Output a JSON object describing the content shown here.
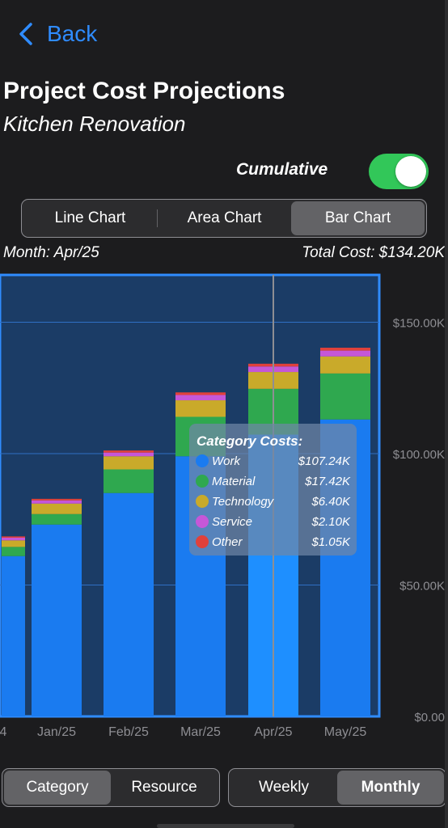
{
  "nav": {
    "back_label": "Back"
  },
  "header": {
    "title": "Project Cost Projections",
    "subtitle": "Kitchen Renovation"
  },
  "cumulative": {
    "label": "Cumulative",
    "on": true
  },
  "chart_tabs": {
    "options": [
      "Line Chart",
      "Area Chart",
      "Bar Chart"
    ],
    "selected": "Bar Chart"
  },
  "summary": {
    "month": "Month: Apr/25",
    "total": "Total Cost: $134.20K"
  },
  "group_tabs": {
    "options": [
      "Category",
      "Resource"
    ],
    "selected": "Category"
  },
  "period_tabs": {
    "options": [
      "Weekly",
      "Monthly"
    ],
    "selected": "Monthly"
  },
  "colors": {
    "work": "#1a7bf0",
    "material": "#2fa84f",
    "technology": "#c9aa2a",
    "service": "#c557d8",
    "other": "#e0413b",
    "accent": "#2f8cff",
    "toggle_on": "#32c759"
  },
  "chart_data": {
    "type": "bar",
    "stacked": true,
    "categories": [
      "4",
      "Jan/25",
      "Feb/25",
      "Mar/25",
      "Apr/25",
      "May/25"
    ],
    "series": [
      {
        "name": "Work",
        "values": [
          61.0,
          73.0,
          85.0,
          99.0,
          107.24,
          113.0
        ]
      },
      {
        "name": "Material",
        "values": [
          3.5,
          4.0,
          9.0,
          15.0,
          17.42,
          17.5
        ]
      },
      {
        "name": "Technology",
        "values": [
          2.5,
          4.0,
          5.0,
          6.3,
          6.4,
          6.5
        ]
      },
      {
        "name": "Service",
        "values": [
          1.0,
          1.2,
          1.4,
          2.0,
          2.1,
          2.2
        ]
      },
      {
        "name": "Other",
        "values": [
          0.5,
          0.6,
          0.8,
          1.0,
          1.05,
          1.1
        ]
      }
    ],
    "ylim": [
      0,
      168
    ],
    "y_ticks": [
      "$0.00",
      "$50.00K",
      "$100.00K",
      "$150.00K"
    ],
    "y_tick_values": [
      0,
      50,
      100,
      150
    ],
    "selected_index": 4,
    "tooltip": {
      "title": "Category Costs:",
      "rows": [
        {
          "name": "Work",
          "value": "$107.24K"
        },
        {
          "name": "Material",
          "value": "$17.42K"
        },
        {
          "name": "Technology",
          "value": "$6.40K"
        },
        {
          "name": "Service",
          "value": "$2.10K"
        },
        {
          "name": "Other",
          "value": "$1.05K"
        }
      ]
    }
  }
}
